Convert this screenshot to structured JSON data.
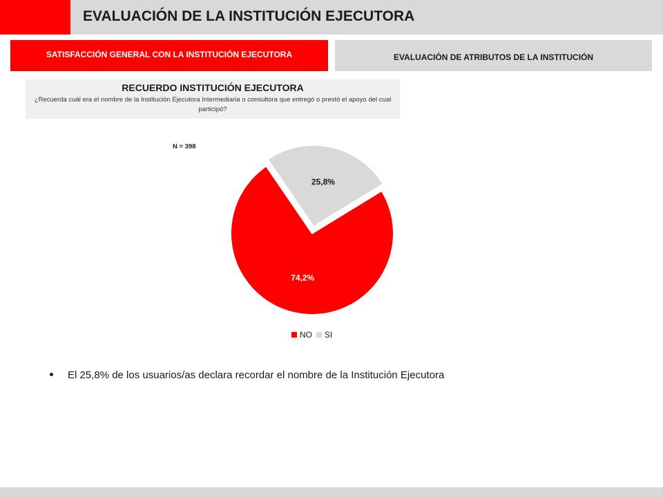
{
  "header": {
    "title": "EVALUACIÓN DE LA INSTITUCIÓN EJECUTORA"
  },
  "tabs": [
    {
      "label": "SATISFACCIÓN GENERAL CON LA INSTITUCIÓN EJECUTORA",
      "active": true
    },
    {
      "label": "EVALUACIÓN DE ATRIBUTOS DE LA INSTITUCIÓN",
      "active": false
    }
  ],
  "question": {
    "title": "RECUERDO INSTITUCIÓN EJECUTORA",
    "text": "¿Recuerda cuál era el nombre de la Institución Ejecutora Intermediaria o consultora que entregó o prestó el apoyo del cual participó?"
  },
  "sample": {
    "label": "N = 398"
  },
  "chart_data": {
    "type": "pie",
    "title": "",
    "slices": [
      {
        "name": "NO",
        "value": 74.2,
        "label": "74,2%",
        "color": "#ff0000",
        "exploded": false
      },
      {
        "name": "SI",
        "value": 25.8,
        "label": "25,8%",
        "color": "#d9d9d9",
        "exploded": true
      }
    ],
    "legend": {
      "position": "bottom",
      "entries": [
        "NO",
        "SI"
      ]
    },
    "n": 398
  },
  "bullet": {
    "text": "El 25,8% de los usuarios/as declara recordar el nombre de la Institución Ejecutora"
  },
  "colors": {
    "accent": "#ff0000",
    "neutral": "#d9d9d9"
  }
}
